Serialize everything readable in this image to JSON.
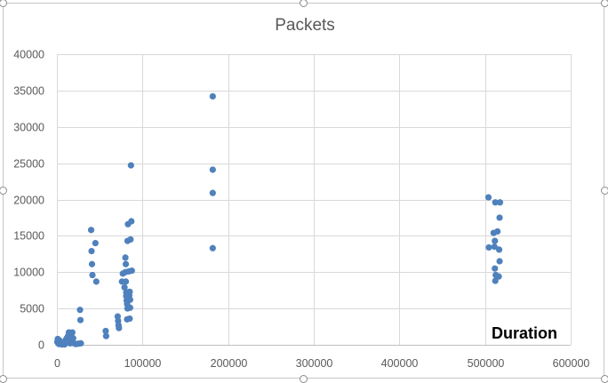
{
  "chart_data": {
    "type": "scatter",
    "title": "Packets",
    "xlabel": "",
    "ylabel": "",
    "annotation": "Duration",
    "xlim": [
      0,
      600000
    ],
    "ylim": [
      0,
      40000
    ],
    "x_ticks": [
      "0",
      "100000",
      "200000",
      "300000",
      "400000",
      "500000",
      "600000"
    ],
    "y_ticks": [
      "0",
      "5000",
      "10000",
      "15000",
      "20000",
      "25000",
      "30000",
      "35000",
      "40000"
    ],
    "grid": true,
    "legend": "none",
    "marker_color": "#4f81bd",
    "gridline_color": "#d9d9d9",
    "points": [
      [
        1000,
        800
      ],
      [
        500,
        400
      ],
      [
        1500,
        200
      ],
      [
        2500,
        100
      ],
      [
        3000,
        600
      ],
      [
        3500,
        300
      ],
      [
        4500,
        150
      ],
      [
        5000,
        80
      ],
      [
        6000,
        50
      ],
      [
        7000,
        200
      ],
      [
        8000,
        100
      ],
      [
        9000,
        50
      ],
      [
        10000,
        350
      ],
      [
        10500,
        700
      ],
      [
        11500,
        900
      ],
      [
        12500,
        500
      ],
      [
        13000,
        1200
      ],
      [
        13500,
        300
      ],
      [
        14000,
        1700
      ],
      [
        15000,
        800
      ],
      [
        15500,
        200
      ],
      [
        16500,
        1400
      ],
      [
        17000,
        600
      ],
      [
        18000,
        1700
      ],
      [
        19000,
        900
      ],
      [
        20000,
        200
      ],
      [
        22000,
        100
      ],
      [
        25000,
        150
      ],
      [
        27000,
        4800
      ],
      [
        27500,
        3400
      ],
      [
        28000,
        200
      ],
      [
        40000,
        15800
      ],
      [
        40500,
        12900
      ],
      [
        41000,
        11100
      ],
      [
        41500,
        9600
      ],
      [
        45000,
        14000
      ],
      [
        46000,
        8700
      ],
      [
        57000,
        1900
      ],
      [
        57500,
        1200
      ],
      [
        71000,
        3900
      ],
      [
        71500,
        3300
      ],
      [
        72000,
        2700
      ],
      [
        72500,
        2300
      ],
      [
        76000,
        8700
      ],
      [
        77000,
        9800
      ],
      [
        79000,
        7900
      ],
      [
        80000,
        12000
      ],
      [
        80500,
        11100
      ],
      [
        80000,
        10000
      ],
      [
        80500,
        8700
      ],
      [
        81000,
        7200
      ],
      [
        81000,
        6700
      ],
      [
        81500,
        6100
      ],
      [
        82000,
        5600
      ],
      [
        82000,
        3500
      ],
      [
        82500,
        5000
      ],
      [
        82500,
        14300
      ],
      [
        83000,
        16600
      ],
      [
        84000,
        10100
      ],
      [
        84500,
        6800
      ],
      [
        85000,
        7300
      ],
      [
        85500,
        6200
      ],
      [
        85000,
        3600
      ],
      [
        85500,
        5100
      ],
      [
        86000,
        14500
      ],
      [
        87000,
        17000
      ],
      [
        86500,
        24700
      ],
      [
        87500,
        10200
      ],
      [
        182000,
        34200
      ],
      [
        182000,
        24100
      ],
      [
        182000,
        20900
      ],
      [
        182000,
        13300
      ],
      [
        504000,
        20300
      ],
      [
        504500,
        13400
      ],
      [
        510000,
        15400
      ],
      [
        511000,
        13500
      ],
      [
        511500,
        14300
      ],
      [
        511500,
        10500
      ],
      [
        512000,
        8800
      ],
      [
        512500,
        9600
      ],
      [
        512000,
        19600
      ],
      [
        514500,
        15600
      ],
      [
        516000,
        9400
      ],
      [
        516500,
        13100
      ],
      [
        517000,
        11500
      ],
      [
        517000,
        17500
      ],
      [
        517500,
        19600
      ]
    ]
  }
}
